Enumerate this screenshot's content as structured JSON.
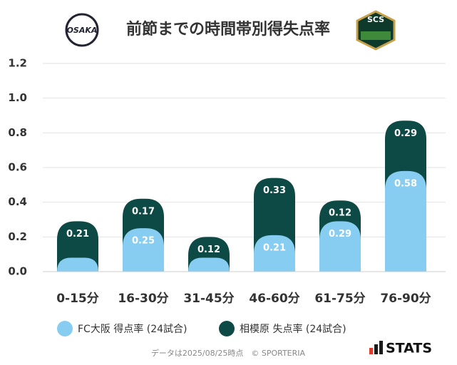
{
  "chart_data": {
    "type": "stacked-bar",
    "title": "前節までの時間帯別得失点率",
    "logos": [
      "OSAKA",
      "SCS"
    ],
    "categories": [
      "0-15分",
      "16-30分",
      "31-45分",
      "46-60分",
      "61-75分",
      "76-90分"
    ],
    "series": [
      {
        "name": "FC大阪 得点率 (24試合)",
        "color": "#87cdf2",
        "values": [
          0.08,
          0.25,
          0.08,
          0.21,
          0.29,
          0.58
        ],
        "value_labels": [
          null,
          "0.25",
          null,
          "0.21",
          "0.29",
          "0.58"
        ]
      },
      {
        "name": "相模原 失点率 (24試合)",
        "color": "#0d4a45",
        "values": [
          0.21,
          0.17,
          0.12,
          0.33,
          0.12,
          0.29
        ],
        "value_labels": [
          "0.21",
          "0.17",
          "0.12",
          "0.33",
          "0.12",
          "0.29"
        ]
      }
    ],
    "ylim": [
      0,
      1.2
    ],
    "yticks": [
      {
        "value": 0,
        "label": "0.0"
      },
      0.2,
      0.4,
      0.6,
      0.8,
      {
        "value": 1,
        "label": "1.0"
      },
      1.2
    ],
    "grid": true,
    "footer": "データは2025/08/25時点　© SPORTERIA",
    "brand": "STATS"
  }
}
